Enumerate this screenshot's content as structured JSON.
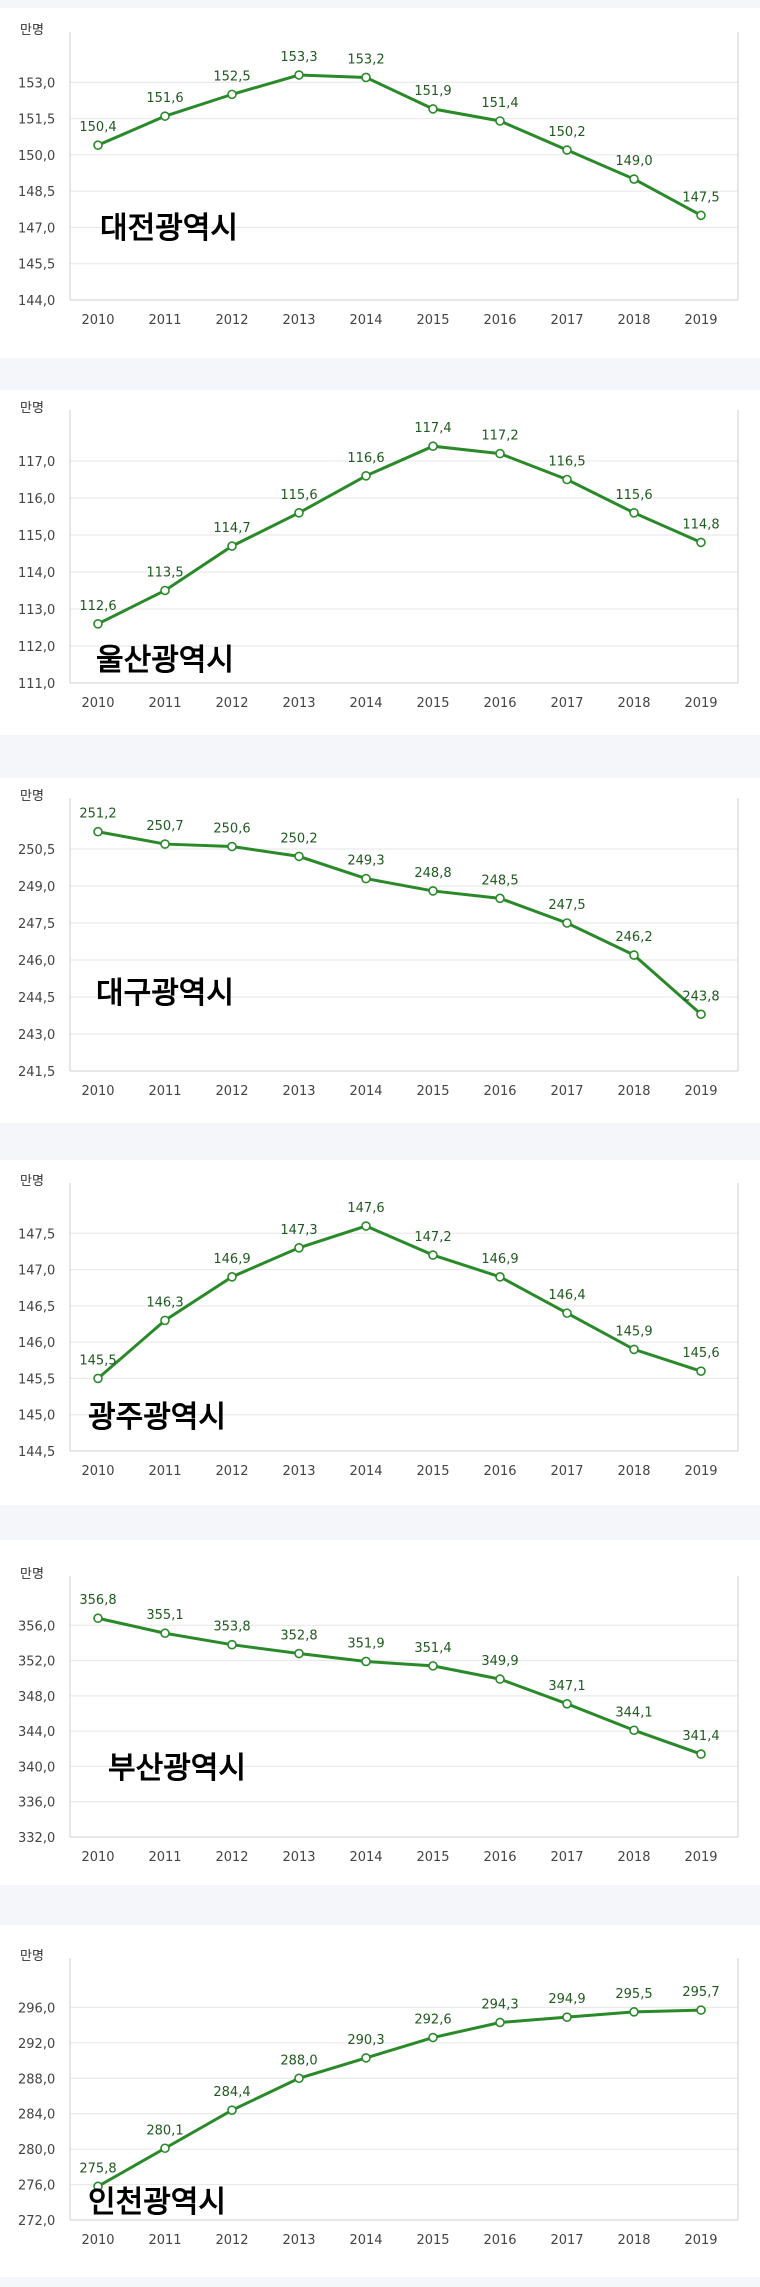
{
  "colors": {
    "line": "#2a8a2a",
    "label": "#1f5a1f",
    "grid": "#e6e6e6"
  },
  "chart_data": [
    {
      "type": "line",
      "title": "대전광역시",
      "unit_label": "만명",
      "x": [
        "2010",
        "2011",
        "2012",
        "2013",
        "2014",
        "2015",
        "2016",
        "2017",
        "2018",
        "2019"
      ],
      "y_ticks": [
        "153,0",
        "151,5",
        "150,0",
        "148,5",
        "147,0",
        "145,5",
        "144,0"
      ],
      "ylim": [
        144.0,
        154.5
      ],
      "values": [
        150.4,
        151.6,
        152.5,
        153.3,
        153.2,
        151.9,
        151.4,
        150.2,
        149.0,
        147.5
      ],
      "value_labels": [
        "150,4",
        "151,6",
        "152,5",
        "153,3",
        "153,2",
        "151,9",
        "151,4",
        "150,2",
        "149,0",
        "147,5"
      ],
      "grid": true
    },
    {
      "type": "line",
      "title": "울산광역시",
      "unit_label": "만명",
      "x": [
        "2010",
        "2011",
        "2012",
        "2013",
        "2014",
        "2015",
        "2016",
        "2017",
        "2018",
        "2019"
      ],
      "y_ticks": [
        "117,0",
        "116,0",
        "115,0",
        "114,0",
        "113,0",
        "112,0",
        "111,0"
      ],
      "ylim": [
        111.0,
        118.0
      ],
      "values": [
        112.6,
        113.5,
        114.7,
        115.6,
        116.6,
        117.4,
        117.2,
        116.5,
        115.6,
        114.8
      ],
      "value_labels": [
        "112,6",
        "113,5",
        "114,7",
        "115,6",
        "116,6",
        "117,4",
        "117,2",
        "116,5",
        "115,6",
        "114,8"
      ],
      "grid": true
    },
    {
      "type": "line",
      "title": "대구광역시",
      "unit_label": "만명",
      "x": [
        "2010",
        "2011",
        "2012",
        "2013",
        "2014",
        "2015",
        "2016",
        "2017",
        "2018",
        "2019"
      ],
      "y_ticks": [
        "250,5",
        "249,0",
        "247,5",
        "246,0",
        "244,5",
        "243,0",
        "241,5"
      ],
      "ylim": [
        241.5,
        252.0
      ],
      "values": [
        251.2,
        250.7,
        250.6,
        250.2,
        249.3,
        248.8,
        248.5,
        247.5,
        246.2,
        243.8
      ],
      "value_labels": [
        "251,2",
        "250,7",
        "250,6",
        "250,2",
        "249,3",
        "248,8",
        "248,5",
        "247,5",
        "246,2",
        "243,8"
      ],
      "grid": true
    },
    {
      "type": "line",
      "title": "광주광역시",
      "unit_label": "만명",
      "x": [
        "2010",
        "2011",
        "2012",
        "2013",
        "2014",
        "2015",
        "2016",
        "2017",
        "2018",
        "2019"
      ],
      "y_ticks": [
        "147,5",
        "147,0",
        "146,5",
        "146,0",
        "145,5",
        "145,0",
        "144,5"
      ],
      "ylim": [
        144.5,
        148.0
      ],
      "values": [
        145.5,
        146.3,
        146.9,
        147.3,
        147.6,
        147.2,
        146.9,
        146.4,
        145.9,
        145.6
      ],
      "value_labels": [
        "145,5",
        "146,3",
        "146,9",
        "147,3",
        "147,6",
        "147,2",
        "146,9",
        "146,4",
        "145,9",
        "145,6"
      ],
      "grid": true
    },
    {
      "type": "line",
      "title": "부산광역시",
      "unit_label": "만명",
      "x": [
        "2010",
        "2011",
        "2012",
        "2013",
        "2014",
        "2015",
        "2016",
        "2017",
        "2018",
        "2019"
      ],
      "y_ticks": [
        "356,0",
        "352,0",
        "348,0",
        "344,0",
        "340,0",
        "336,0",
        "332,0"
      ],
      "ylim": [
        332.0,
        360.0
      ],
      "values": [
        356.8,
        355.1,
        353.8,
        352.8,
        351.9,
        351.4,
        349.9,
        347.1,
        344.1,
        341.4
      ],
      "value_labels": [
        "356,8",
        "355,1",
        "353,8",
        "352,8",
        "351,9",
        "351,4",
        "349,9",
        "347,1",
        "344,1",
        "341,4"
      ],
      "grid": true
    },
    {
      "type": "line",
      "title": "인천광역시",
      "unit_label": "만명",
      "x": [
        "2010",
        "2011",
        "2012",
        "2013",
        "2014",
        "2015",
        "2016",
        "2017",
        "2018",
        "2019"
      ],
      "y_ticks": [
        "296,0",
        "292,0",
        "288,0",
        "284,0",
        "280,0",
        "276,0",
        "272,0"
      ],
      "ylim": [
        272.0,
        300.0
      ],
      "values": [
        275.8,
        280.1,
        284.4,
        288.0,
        290.3,
        292.6,
        294.3,
        294.9,
        295.5,
        295.7
      ],
      "value_labels": [
        "275,8",
        "280,1",
        "284,4",
        "288,0",
        "290,3",
        "292,6",
        "294,3",
        "294,9",
        "295,5",
        "295,7"
      ],
      "grid": true
    }
  ]
}
